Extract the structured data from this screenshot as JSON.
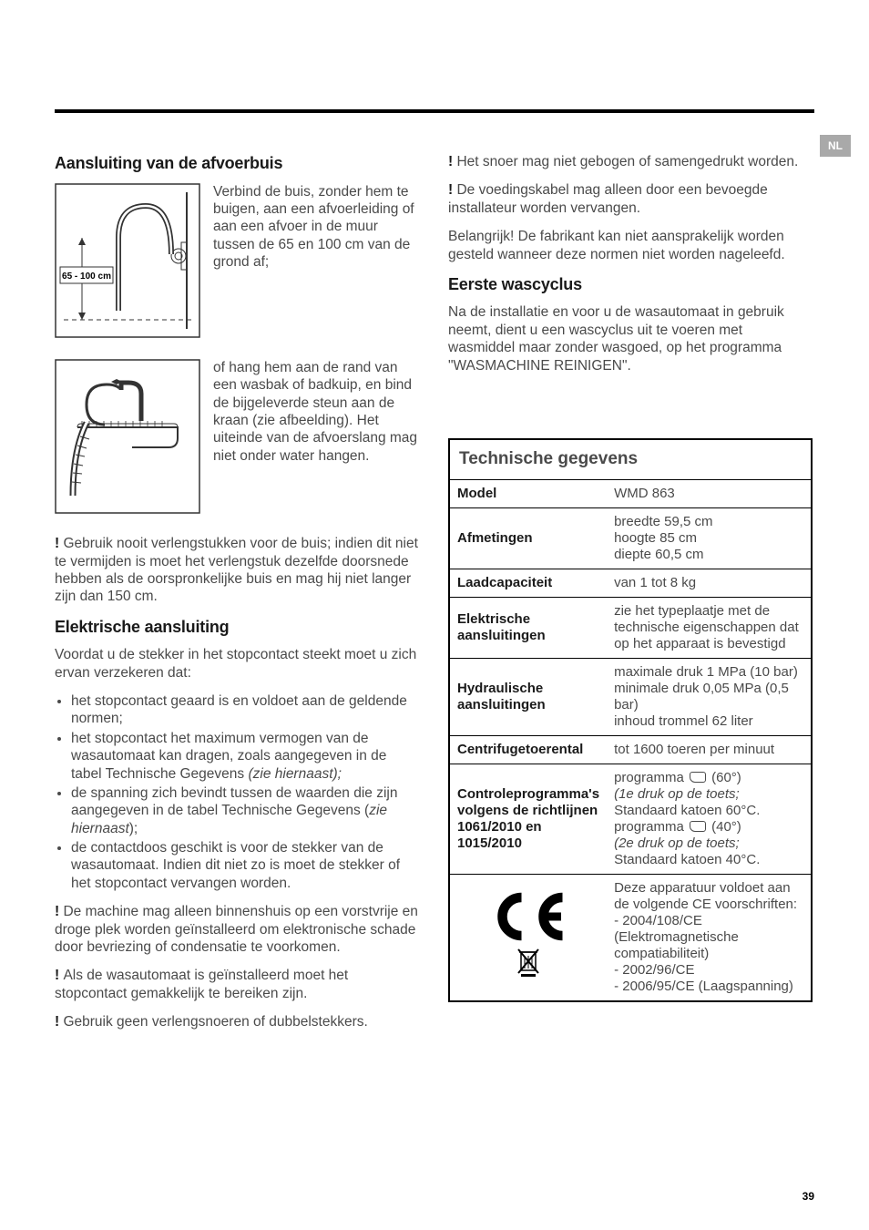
{
  "lang_tab": "NL",
  "page_number": "39",
  "left": {
    "h_afvoer": "Aansluiting van de afvoerbuis",
    "fig1_label": "65 - 100 cm",
    "fig1_text": "Verbind de buis, zonder hem te buigen, aan een afvoerleiding of aan een afvoer in de muur tussen de 65 en 100 cm van de grond af;",
    "fig2_text": "of hang hem aan de rand van een wasbak of badkuip, en bind de bijgeleverde steun aan de kraan (zie afbeelding). Het uiteinde van de afvoerslang mag niet onder water hangen.",
    "warn1": "Gebruik nooit verlengstukken voor de buis; indien dit niet te vermijden is moet het verlengstuk dezelfde doorsnede hebben als de oorspronkelijke buis en mag hij niet langer zijn dan 150 cm.",
    "h_elek": "Elektrische aansluiting",
    "elek_intro": "Voordat u de stekker in het stopcontact steekt moet u zich ervan verzekeren dat:",
    "bul1": "het stopcontact geaard is en voldoet aan de geldende normen;",
    "bul2_a": "het stopcontact het maximum vermogen van de wasautomaat kan dragen, zoals aangegeven in de tabel Technische Gegevens ",
    "bul2_b": "(zie hiernaast);",
    "bul3_a": "de spanning zich bevindt tussen de waarden die zijn aangegeven in de tabel Technische Gegevens (",
    "bul3_b": "zie hiernaast",
    "bul3_c": ");",
    "bul4": "de contactdoos geschikt is voor de stekker van de wasautomaat. Indien dit niet zo is moet de stekker of het stopcontact vervangen worden.",
    "warn2": "De machine mag alleen binnenshuis op een vorstvrije en droge plek worden geïnstalleerd om elektronische schade door bevriezing of condensatie te voorkomen.",
    "warn3": "Als de wasautomaat is geïnstalleerd moet het stopcontact gemakkelijk te bereiken zijn.",
    "warn4": "Gebruik geen verlengsnoeren of dubbelstekkers."
  },
  "right": {
    "warn5": "Het snoer mag niet gebogen of samengedrukt worden.",
    "warn6": "De voedingskabel mag alleen door een bevoegde installateur worden vervangen.",
    "belangrijk": "Belangrijk! De fabrikant kan niet aansprakelijk worden gesteld wanneer deze normen niet worden nageleefd.",
    "h_eerste": "Eerste wascyclus",
    "eerste_text": "Na de installatie en voor u de wasautomaat in gebruik neemt, dient u een wascyclus uit te voeren met wasmiddel maar zonder wasgoed, op het programma \"WASMACHINE REINIGEN\".",
    "table": {
      "title": "Technische gegevens",
      "rows": [
        {
          "label": "Model",
          "value": "WMD 863"
        },
        {
          "label": "Afmetingen",
          "value": "breedte 59,5 cm\nhoogte 85 cm\ndiepte 60,5 cm"
        },
        {
          "label": "Laadcapaciteit",
          "value": "van 1 tot 8 kg"
        },
        {
          "label": "Elektrische aansluitingen",
          "value": "zie het typeplaatje met de technische eigenschappen dat op het apparaat is bevestigd"
        },
        {
          "label": "Hydraulische aansluitingen",
          "value": "maximale druk 1 MPa (10 bar)\nminimale druk 0,05 MPa (0,5 bar)\ninhoud trommel 62 liter"
        },
        {
          "label": "Centrifugetoerental",
          "value": "tot 1600 toeren per minuut"
        }
      ],
      "controle_label": "Controleprogramma's volgens de richtlijnen 1061/2010 en 1015/2010",
      "controle_lines": {
        "l1a": "programma ",
        "l1b": " (60°)",
        "l2": "(1e druk op de toets;",
        "l3": "Standaard katoen 60°C.",
        "l4a": "programma ",
        "l4b": " (40°)",
        "l5": "(2e druk op de toets;",
        "l6": "Standaard katoen 40°C."
      },
      "ce_lines": [
        "Deze apparatuur voldoet aan de volgende CE voorschriften:",
        "- 2004/108/CE (Elektromagnetische compatiabiliteit)",
        "- 2002/96/CE",
        "- 2006/95/CE (Laagspanning)"
      ]
    }
  }
}
